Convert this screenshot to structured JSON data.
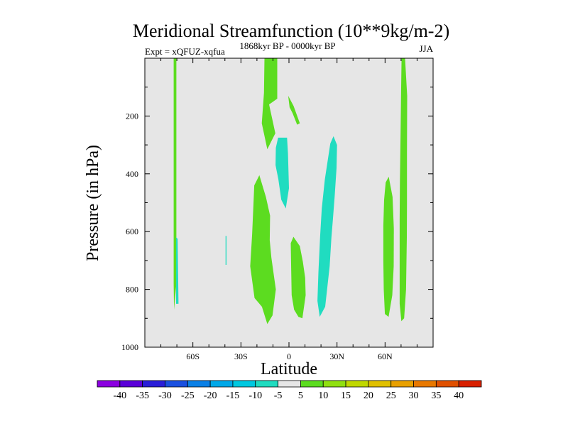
{
  "chart_data": {
    "type": "contour",
    "title": "Meridional Streamfunction (10**9kg/m-2)",
    "subtitle_left": "Expt = xQFUZ-xqfua",
    "subtitle_center": "1868kyr BP - 0000kyr BP",
    "subtitle_right": "JJA",
    "xlabel": "Latitude",
    "ylabel": "Pressure (in hPa)",
    "xlim": [
      -90,
      90
    ],
    "ylim": [
      0,
      1000
    ],
    "x_ticks": [
      -60,
      -30,
      0,
      30,
      60
    ],
    "x_tick_labels": [
      "60S",
      "30S",
      "0",
      "30N",
      "60N"
    ],
    "y_ticks": [
      200,
      400,
      600,
      800,
      1000
    ],
    "y_tick_labels": [
      "200",
      "400",
      "600",
      "800",
      "1000"
    ],
    "background_color": "#e6e6e6",
    "colorbar": {
      "labels": [
        "-40",
        "-35",
        "-30",
        "-25",
        "-20",
        "-15",
        "-10",
        "-5",
        "5",
        "10",
        "15",
        "20",
        "25",
        "30",
        "35",
        "40"
      ],
      "colors": [
        "#8b00e0",
        "#5a00d8",
        "#2a1ed8",
        "#1a50e0",
        "#0a80e6",
        "#00a8e8",
        "#00c8e0",
        "#20dcc0",
        "#e6e6e6",
        "#5cdc20",
        "#90e010",
        "#c0d800",
        "#e0c000",
        "#e8a000",
        "#e87800",
        "#e05000",
        "#d82000"
      ]
    },
    "regions": [
      {
        "name": "positive-band-70s",
        "sign": "+",
        "level": "5 to 10",
        "color": "#5cdc20",
        "points": [
          [
            -72,
            0
          ],
          [
            -70.3,
            0
          ],
          [
            -70.3,
            780
          ],
          [
            -71.8,
            870
          ],
          [
            -72,
            780
          ]
        ]
      },
      {
        "name": "negative-sliver-70s",
        "sign": "-",
        "level": "-10 to -5",
        "color": "#20dcc0",
        "points": [
          [
            -70.5,
            620
          ],
          [
            -69.5,
            625
          ],
          [
            -69,
            850
          ],
          [
            -70.5,
            850
          ]
        ]
      },
      {
        "name": "negative-sliver-40s",
        "sign": "-",
        "level": "-10 to -5",
        "color": "#20dcc0",
        "points": [
          [
            -39.6,
            615
          ],
          [
            -39,
            615
          ],
          [
            -39,
            715
          ],
          [
            -39.6,
            715
          ]
        ]
      },
      {
        "name": "positive-column-15s-top",
        "sign": "+",
        "level": "5 to 10",
        "color": "#5cdc20",
        "points": [
          [
            -15.3,
            0
          ],
          [
            -7.3,
            0
          ],
          [
            -7.3,
            140
          ],
          [
            -12.4,
            160
          ],
          [
            -8.5,
            260
          ],
          [
            -13.5,
            315
          ],
          [
            -17,
            225
          ],
          [
            -15.6,
            120
          ]
        ]
      },
      {
        "name": "positive-lobe-20s",
        "sign": "+",
        "level": "5 to 10",
        "color": "#5cdc20",
        "points": [
          [
            -21.7,
            440
          ],
          [
            -18.5,
            405
          ],
          [
            -14.4,
            480
          ],
          [
            -11.8,
            545
          ],
          [
            -12,
            630
          ],
          [
            -11,
            690
          ],
          [
            -8.2,
            800
          ],
          [
            -10.3,
            890
          ],
          [
            -13.5,
            920
          ],
          [
            -16.9,
            860
          ],
          [
            -21.5,
            830
          ],
          [
            -24.2,
            720
          ],
          [
            -23,
            610
          ],
          [
            -22.2,
            510
          ]
        ]
      },
      {
        "name": "negative-lobe-5s",
        "sign": "-",
        "level": "-10 to -5",
        "color": "#20dcc0",
        "points": [
          [
            -8.2,
            310
          ],
          [
            -6.8,
            275
          ],
          [
            -1.2,
            275
          ],
          [
            -0.6,
            330
          ],
          [
            0,
            450
          ],
          [
            -2,
            520
          ],
          [
            -4.8,
            490
          ],
          [
            -6.6,
            420
          ],
          [
            -8.4,
            370
          ]
        ]
      },
      {
        "name": "positive-blob-eq-top",
        "sign": "+",
        "level": "5 to 10",
        "color": "#5cdc20",
        "points": [
          [
            -0.5,
            130
          ],
          [
            2.9,
            165
          ],
          [
            6.8,
            225
          ],
          [
            5.1,
            230
          ],
          [
            2.2,
            190
          ],
          [
            0.4,
            170
          ]
        ]
      },
      {
        "name": "positive-blob-eq-low",
        "sign": "+",
        "level": "5 to 10",
        "color": "#5cdc20",
        "points": [
          [
            1.1,
            640
          ],
          [
            2.8,
            618
          ],
          [
            6.8,
            650
          ],
          [
            8.7,
            705
          ],
          [
            10.1,
            760
          ],
          [
            10.4,
            820
          ],
          [
            8.4,
            900
          ],
          [
            5.9,
            895
          ],
          [
            3.2,
            870
          ],
          [
            1.7,
            820
          ],
          [
            1.4,
            740
          ]
        ]
      },
      {
        "name": "negative-lobe-25n",
        "sign": "-",
        "level": "-10 to -5",
        "color": "#20dcc0",
        "points": [
          [
            25.8,
            295
          ],
          [
            27.8,
            270
          ],
          [
            30,
            300
          ],
          [
            29.7,
            380
          ],
          [
            28.5,
            480
          ],
          [
            27.4,
            560
          ],
          [
            26.5,
            620
          ],
          [
            25.4,
            720
          ],
          [
            22.6,
            860
          ],
          [
            19.2,
            895
          ],
          [
            17.8,
            840
          ],
          [
            18.4,
            740
          ],
          [
            19.4,
            620
          ],
          [
            20.5,
            520
          ],
          [
            22.4,
            420
          ]
        ]
      },
      {
        "name": "positive-lobe-60n",
        "sign": "+",
        "level": "5 to 10",
        "color": "#5cdc20",
        "points": [
          [
            60.4,
            430
          ],
          [
            62.3,
            410
          ],
          [
            64.7,
            480
          ],
          [
            65.5,
            590
          ],
          [
            65.4,
            720
          ],
          [
            64.5,
            820
          ],
          [
            62.2,
            895
          ],
          [
            59.9,
            885
          ],
          [
            59.2,
            800
          ],
          [
            58.9,
            700
          ],
          [
            58.9,
            580
          ],
          [
            59.4,
            490
          ]
        ]
      },
      {
        "name": "positive-column-70n",
        "sign": "+",
        "level": "5 to 10",
        "color": "#5cdc20",
        "points": [
          [
            70.3,
            0
          ],
          [
            72.5,
            0
          ],
          [
            73.8,
            130
          ],
          [
            73.7,
            330
          ],
          [
            73.7,
            500
          ],
          [
            73.6,
            620
          ],
          [
            73.1,
            800
          ],
          [
            71.9,
            900
          ],
          [
            70.2,
            910
          ],
          [
            69.1,
            850
          ],
          [
            69.1,
            700
          ],
          [
            69.1,
            560
          ],
          [
            69.3,
            420
          ],
          [
            69.7,
            260
          ],
          [
            70,
            120
          ]
        ]
      }
    ]
  }
}
